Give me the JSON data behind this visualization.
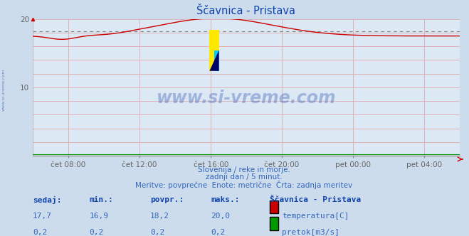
{
  "title": "Ščavnica - Pristava",
  "bg_color": "#ccdcec",
  "plot_bg_color": "#dce8f4",
  "title_color": "#1144aa",
  "grid_color": "#ddaaaa",
  "tick_label_color": "#666666",
  "temp_color": "#cc0000",
  "flow_color": "#009900",
  "avg_line_color": "#666666",
  "watermark_color": "#4466bb",
  "text_color": "#3366bb",
  "xlabel_ticks": [
    "čet 08:00",
    "čet 12:00",
    "čet 16:00",
    "čet 20:00",
    "pet 00:00",
    "pet 04:00"
  ],
  "xlabel_tick_positions": [
    0.083,
    0.25,
    0.417,
    0.583,
    0.75,
    0.917
  ],
  "ylim": [
    0,
    20
  ],
  "avg_temp": 18.2,
  "subtitle_lines": [
    "Slovenija / reke in morje.",
    "zadnji dan / 5 minut.",
    "Meritve: povprečne  Enote: metrične  Črta: zadnja meritev"
  ],
  "table_headers": [
    "sedaj:",
    "min.:",
    "povpr.:",
    "maks.:",
    "Ščavnica - Pristava"
  ],
  "table_row1": [
    "17,7",
    "16,9",
    "18,2",
    "20,0"
  ],
  "table_row2": [
    "0,2",
    "0,2",
    "0,2",
    "0,2"
  ],
  "legend_temp": "temperatura[C]",
  "legend_flow": "pretok[m3/s]",
  "n_points": 288,
  "left_label": "www.si-vreme.com"
}
